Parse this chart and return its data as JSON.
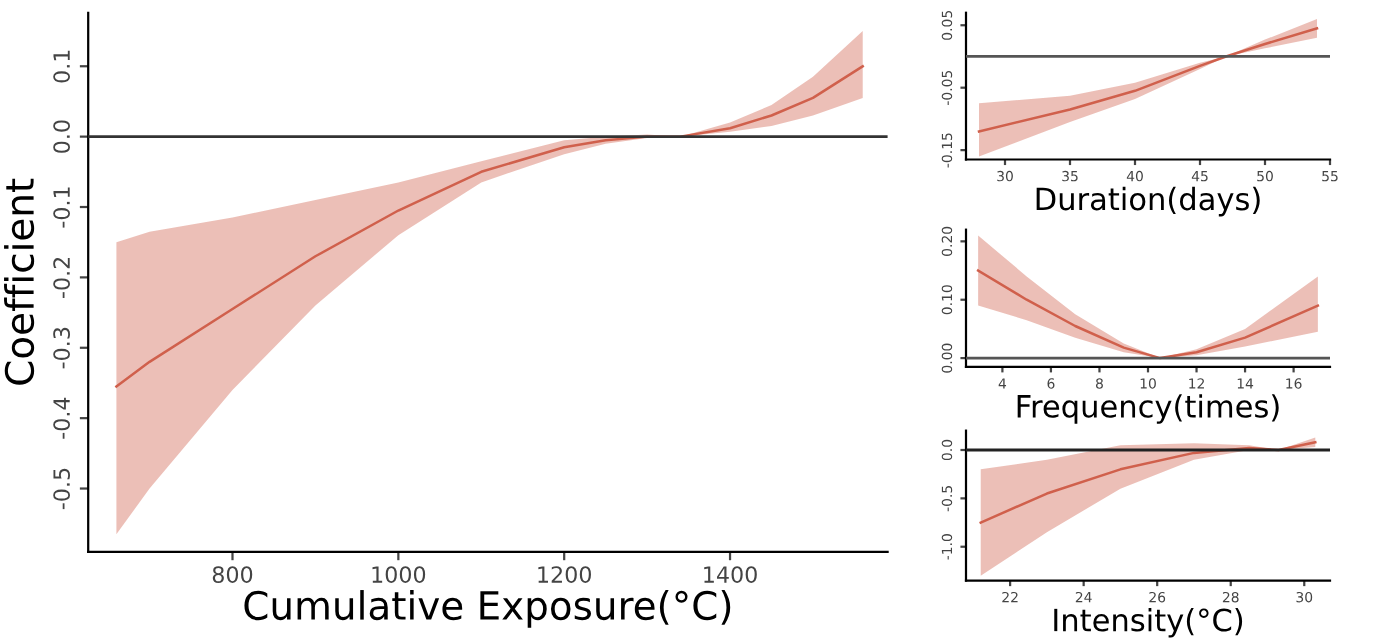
{
  "chart_data": [
    {
      "type": "line",
      "xlabel": "Cumulative Exposure(°C)",
      "ylabel": "Coefficient",
      "grid": false,
      "legend": false,
      "x": [
        660,
        700,
        800,
        900,
        1000,
        1100,
        1200,
        1250,
        1300,
        1340,
        1400,
        1450,
        1500,
        1560
      ],
      "series": [
        {
          "color": "#d0604c",
          "values": [
            -0.355,
            -0.32,
            -0.245,
            -0.17,
            -0.105,
            -0.05,
            -0.015,
            -0.005,
            0,
            0,
            0.012,
            0.03,
            0.055,
            0.1
          ],
          "lower": [
            -0.565,
            -0.5,
            -0.36,
            -0.24,
            -0.14,
            -0.065,
            -0.025,
            -0.01,
            -0.002,
            0,
            0.007,
            0.015,
            0.03,
            0.055
          ],
          "upper": [
            -0.15,
            -0.135,
            -0.115,
            -0.09,
            -0.065,
            -0.035,
            -0.005,
            0.0,
            0.003,
            0,
            0.02,
            0.045,
            0.085,
            0.15
          ]
        }
      ],
      "xlim": [
        626,
        1590
      ],
      "xticks": [
        800,
        1000,
        1200,
        1400
      ],
      "ylim": [
        -0.59,
        0.176
      ],
      "yticks": [
        -0.5,
        -0.4,
        -0.3,
        -0.2,
        -0.1,
        {
          "value": 0,
          "label": "0.0"
        },
        0.1
      ],
      "ref_lines": [
        {
          "axis": "y",
          "value": 0,
          "color": "#333333"
        }
      ]
    },
    {
      "type": "line",
      "xlabel": "Duration(days)",
      "grid": false,
      "legend": false,
      "x": [
        28,
        35,
        40,
        45,
        47,
        50,
        54
      ],
      "series": [
        {
          "color": "#d0604c",
          "values": [
            -0.12,
            -0.085,
            -0.055,
            -0.015,
            0,
            0.02,
            0.045
          ],
          "lower": [
            -0.16,
            -0.105,
            -0.068,
            -0.02,
            0,
            0.013,
            0.03
          ],
          "upper": [
            -0.075,
            -0.063,
            -0.042,
            -0.01,
            0,
            0.027,
            0.06
          ]
        }
      ],
      "xlim": [
        27,
        55
      ],
      "xticks": [
        30,
        35,
        40,
        45,
        50,
        55
      ],
      "ylim": [
        -0.165,
        0.07
      ],
      "yticks": [
        -0.15,
        -0.05,
        0.05
      ],
      "ref_lines": [
        {
          "axis": "y",
          "value": 0,
          "color": "#555555"
        }
      ]
    },
    {
      "type": "line",
      "xlabel": "Frequency(times)",
      "grid": false,
      "legend": false,
      "x": [
        3,
        5,
        7,
        9,
        10.5,
        12,
        14,
        17
      ],
      "series": [
        {
          "color": "#d0604c",
          "values": [
            0.15,
            0.1,
            0.055,
            0.018,
            0,
            0.01,
            0.035,
            0.09
          ],
          "lower": [
            0.09,
            0.065,
            0.035,
            0.01,
            0,
            0.005,
            0.02,
            0.045
          ],
          "upper": [
            0.21,
            0.14,
            0.075,
            0.025,
            0,
            0.015,
            0.05,
            0.14
          ]
        }
      ],
      "xlim": [
        2.5,
        17.5
      ],
      "xticks": [
        4,
        6,
        8,
        10,
        12,
        14,
        16
      ],
      "ylim": [
        -0.015,
        0.22
      ],
      "yticks": [
        {
          "value": 0,
          "label": "0.00"
        },
        {
          "value": 0.1,
          "label": "0.10"
        },
        {
          "value": 0.2,
          "label": "0.20"
        }
      ],
      "ref_lines": [
        {
          "axis": "y",
          "value": 0,
          "color": "#555555"
        }
      ]
    },
    {
      "type": "line",
      "xlabel": "Intensity(°C)",
      "grid": false,
      "legend": false,
      "x": [
        21.2,
        23,
        25,
        27,
        28.5,
        29.3,
        30.3
      ],
      "series": [
        {
          "color": "#d0604c",
          "values": [
            -0.75,
            -0.45,
            -0.2,
            -0.03,
            0.02,
            0,
            0.08
          ],
          "lower": [
            -1.3,
            -0.85,
            -0.4,
            -0.1,
            0,
            0,
            0.03
          ],
          "upper": [
            -0.2,
            -0.1,
            0.05,
            0.07,
            0.05,
            0,
            0.13
          ]
        }
      ],
      "xlim": [
        20.8,
        30.7
      ],
      "xticks": [
        22,
        24,
        26,
        28,
        30
      ],
      "ylim": [
        -1.35,
        0.2
      ],
      "yticks": [
        {
          "value": -1,
          "label": "-1.0"
        },
        -0.5,
        {
          "value": 0,
          "label": "0.0"
        }
      ],
      "ref_lines": [
        {
          "axis": "y",
          "value": 0,
          "color": "#222222"
        }
      ]
    }
  ]
}
